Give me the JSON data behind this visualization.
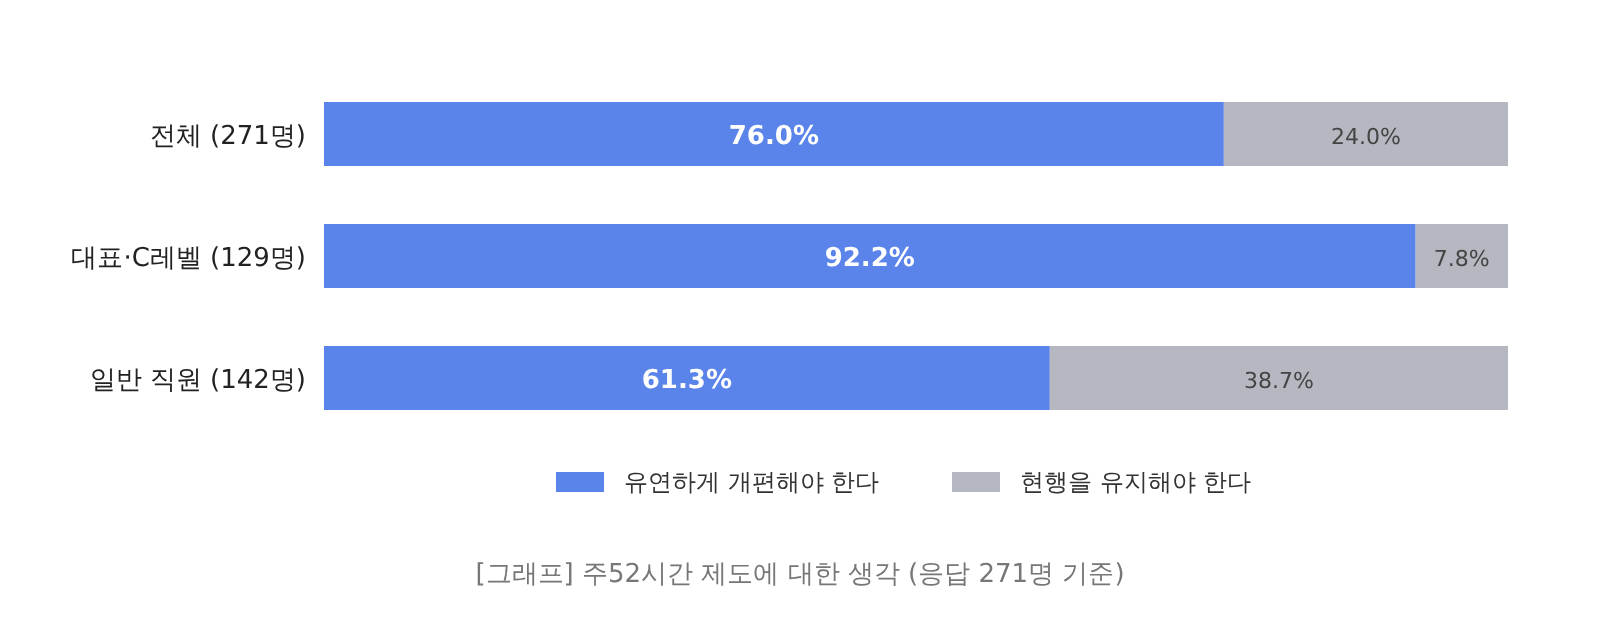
{
  "chart_data": {
    "type": "bar",
    "orientation": "horizontal",
    "stacked": true,
    "legend": "bottom",
    "categories": [
      "전체 (271명)",
      "대표·C레벨 (129명)",
      "일반 직원 (142명)"
    ],
    "series": [
      {
        "name": "유연하게 개편해야 한다",
        "color": "#5b84ea",
        "values": [
          76.0,
          92.2,
          61.3
        ],
        "value_labels": [
          "76.0%",
          "92.2%",
          "61.3%"
        ]
      },
      {
        "name": "현행을 유지해야 한다",
        "color": "#b5b8c0",
        "values": [
          24.0,
          7.8,
          38.7
        ],
        "value_labels": [
          "24.0%",
          "7.8%",
          "38.7%"
        ]
      }
    ],
    "annotations": [
      "[그래프] 주52시간 제도에 대한 생각 (응답 271명 기준)"
    ]
  }
}
